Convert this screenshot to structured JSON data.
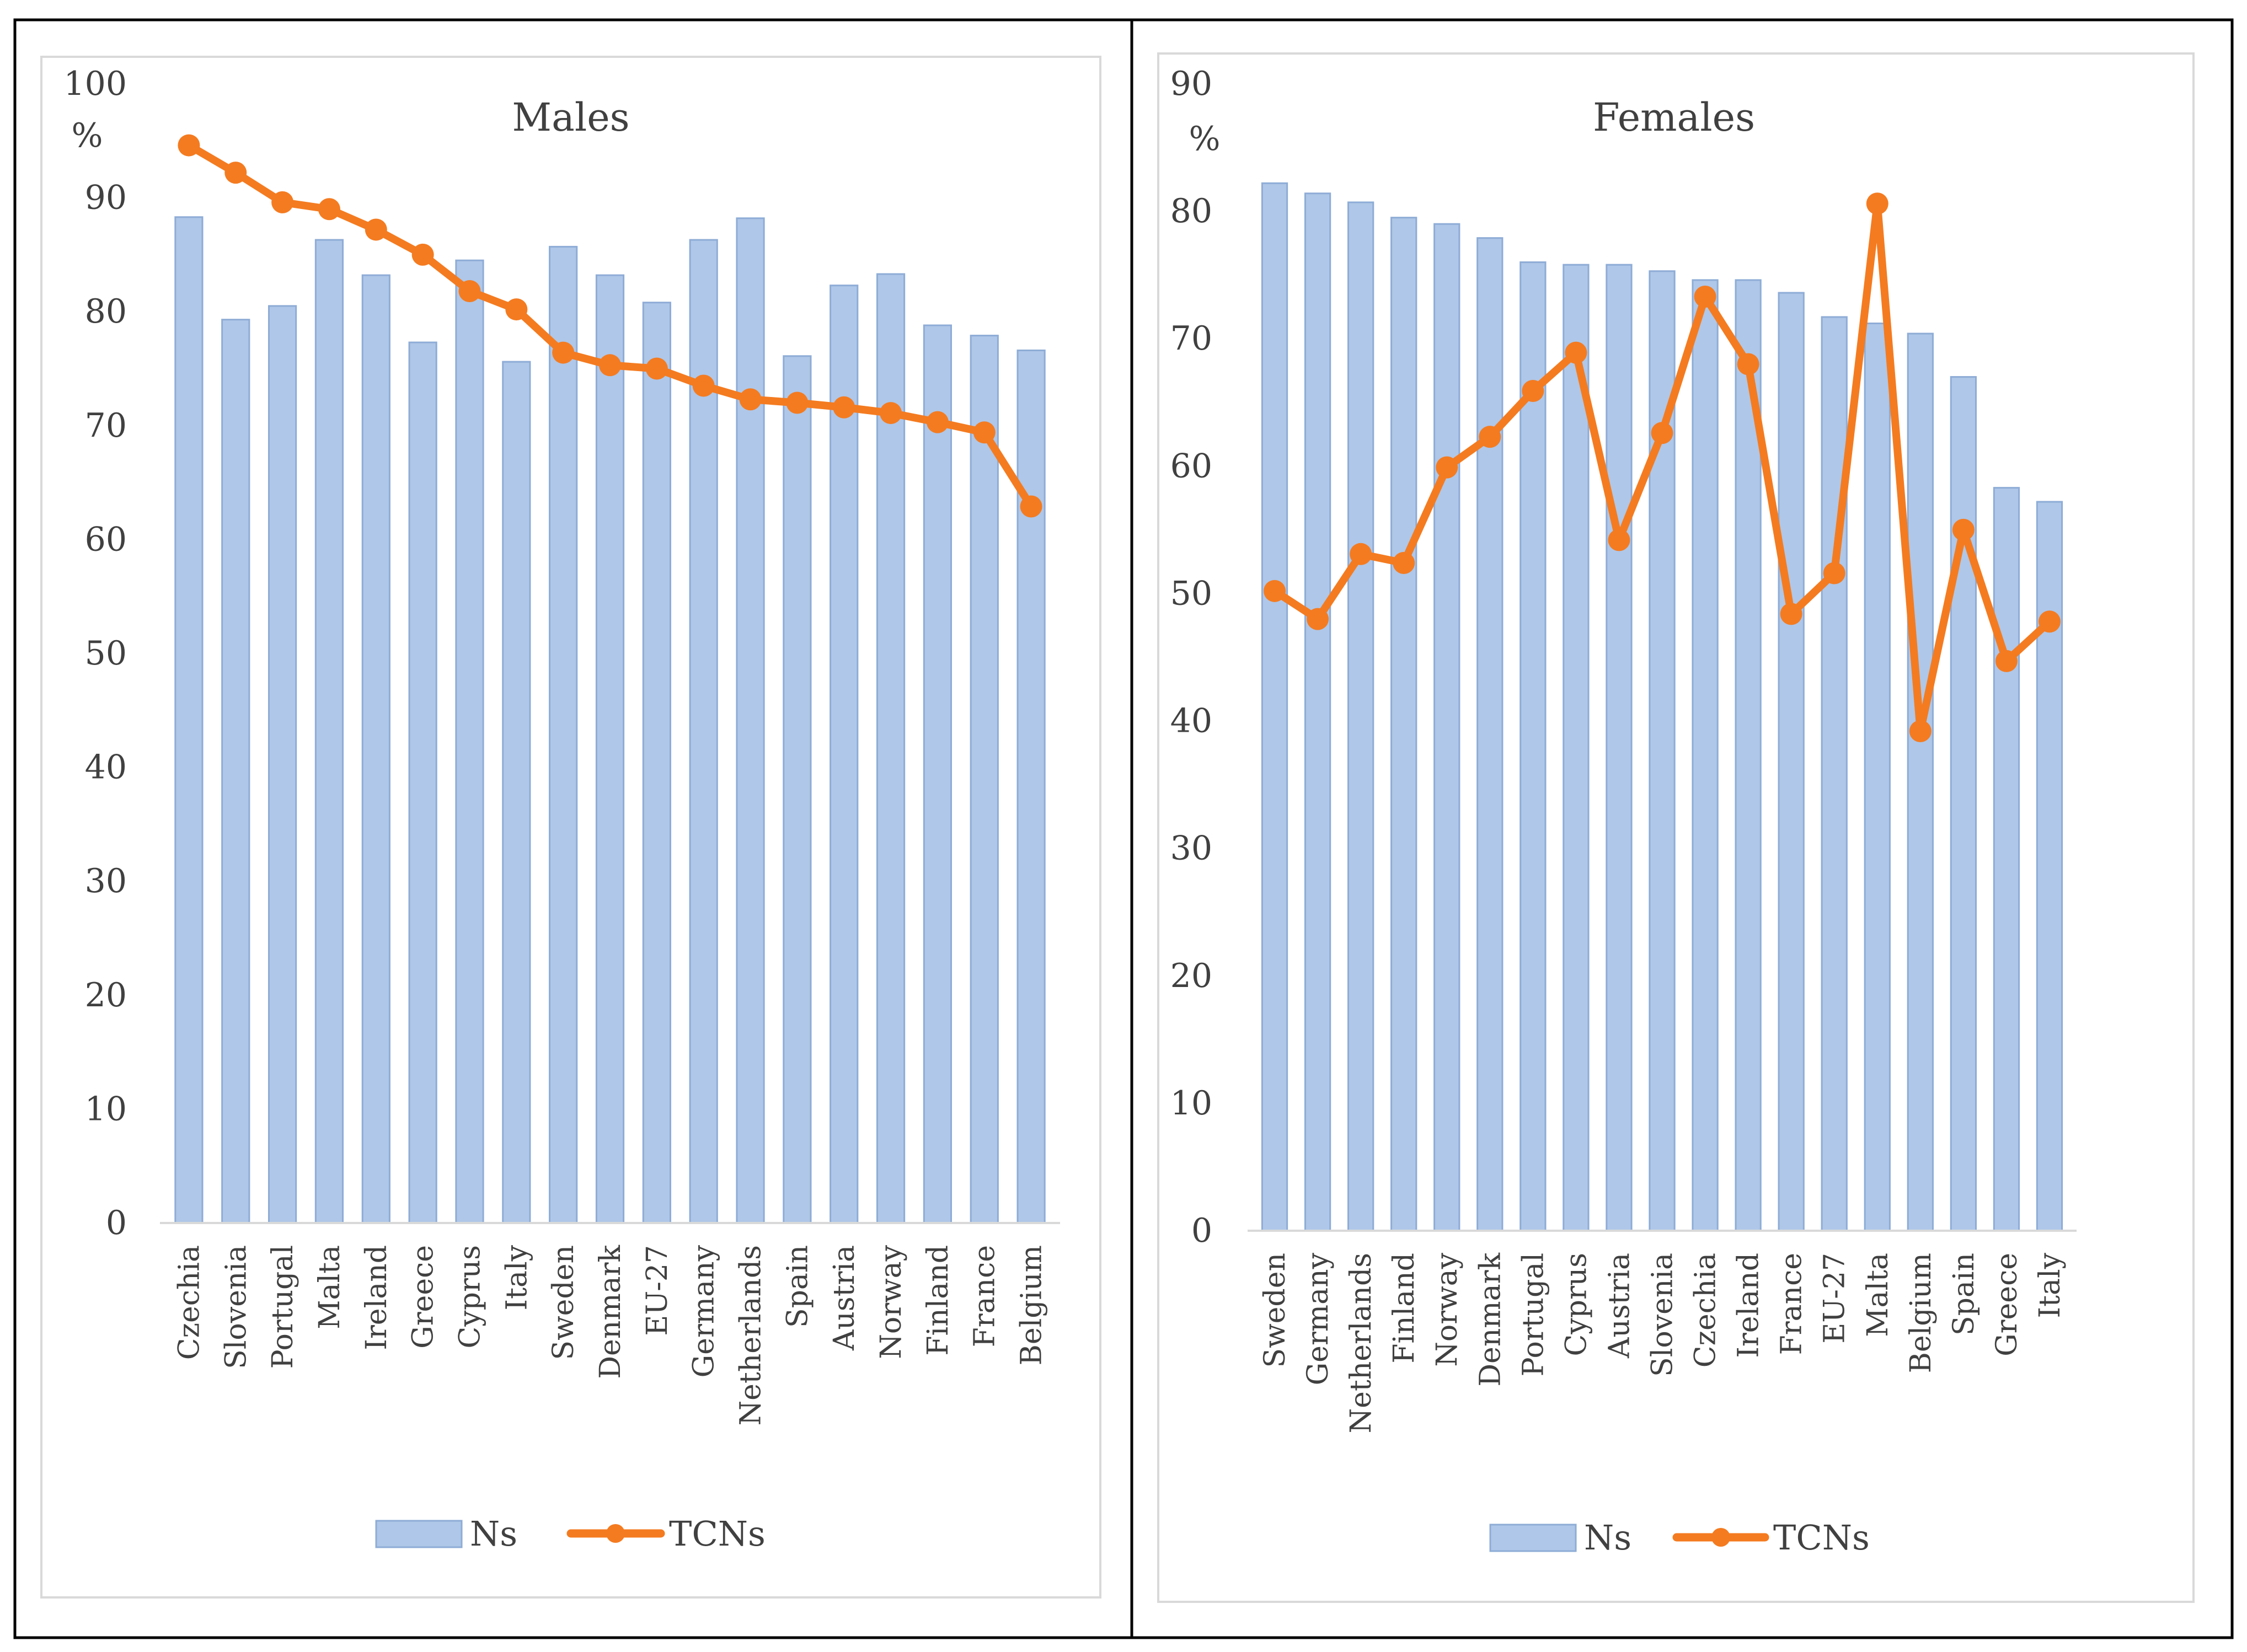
{
  "chart_data": [
    {
      "type": "bar",
      "title": "Males",
      "ylabel": "%",
      "ylim": [
        0,
        100
      ],
      "yticks": [
        0,
        10,
        20,
        30,
        40,
        50,
        60,
        70,
        80,
        90,
        100
      ],
      "categories": [
        "Czechia",
        "Slovenia",
        "Portugal",
        "Malta",
        "Ireland",
        "Greece",
        "Cyprus",
        "Italy",
        "Sweden",
        "Denmark",
        "EU-27",
        "Germany",
        "Netherlands",
        "Spain",
        "Austria",
        "Norway",
        "Finland",
        "France",
        "Belgium"
      ],
      "series": [
        {
          "name": "Ns",
          "kind": "bar",
          "color": "#afc7e8",
          "values": [
            88.3,
            79.3,
            80.5,
            86.3,
            83.2,
            77.3,
            84.5,
            75.6,
            85.7,
            83.2,
            80.8,
            86.3,
            88.2,
            76.1,
            82.3,
            83.3,
            78.8,
            77.9,
            76.6
          ]
        },
        {
          "name": "TCNs",
          "kind": "line",
          "color": "#f47b20",
          "values": [
            94.6,
            92.2,
            89.6,
            89.0,
            87.2,
            85.0,
            81.8,
            80.2,
            76.4,
            75.3,
            75.0,
            73.5,
            72.3,
            72.0,
            71.6,
            71.1,
            70.3,
            69.4,
            62.9
          ]
        }
      ],
      "legend": [
        "Ns",
        "TCNs"
      ],
      "legend_position": "bottom"
    },
    {
      "type": "bar",
      "title": "Females",
      "ylabel": "%",
      "ylim": [
        0,
        90
      ],
      "yticks": [
        0,
        10,
        20,
        30,
        40,
        50,
        60,
        70,
        80,
        90
      ],
      "categories": [
        "Sweden",
        "Germany",
        "Netherlands",
        "Finland",
        "Norway",
        "Denmark",
        "Portugal",
        "Cyprus",
        "Austria",
        "Slovenia",
        "Czechia",
        "Ireland",
        "France",
        "EU-27",
        "Malta",
        "Belgium",
        "Spain",
        "Greece",
        "Italy"
      ],
      "series": [
        {
          "name": "Ns",
          "kind": "bar",
          "color": "#afc7e8",
          "values": [
            82.2,
            81.4,
            80.7,
            79.5,
            79.0,
            77.9,
            76.0,
            75.8,
            75.8,
            75.3,
            74.6,
            74.6,
            73.6,
            71.7,
            71.2,
            70.4,
            67.0,
            58.3,
            57.2
          ]
        },
        {
          "name": "TCNs",
          "kind": "line",
          "color": "#f47b20",
          "values": [
            50.2,
            48.0,
            53.1,
            52.4,
            59.9,
            62.3,
            65.9,
            68.9,
            54.2,
            62.6,
            73.3,
            68.0,
            48.4,
            51.6,
            80.6,
            39.2,
            55.0,
            44.7,
            47.8
          ]
        }
      ],
      "legend": [
        "Ns",
        "TCNs"
      ],
      "legend_position": "bottom"
    }
  ]
}
